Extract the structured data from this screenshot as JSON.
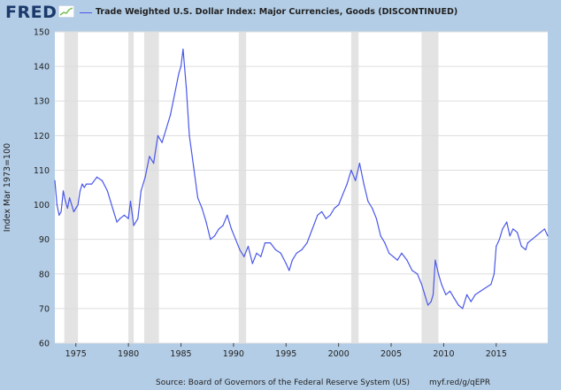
{
  "header": {
    "logo_text": "FRED",
    "logo_icon": "fred-sparkline-icon",
    "legend_label": "Trade Weighted U.S. Dollar Index: Major Currencies, Goods (DISCONTINUED)"
  },
  "footer": {
    "source": "Source: Board of Governors of the Federal Reserve System (US)",
    "url": "myf.red/g/qEPR"
  },
  "colors": {
    "page_background": "#b3cde6",
    "plot_background": "#ffffff",
    "line": "#4a58e8",
    "recession": "#e3e3e3",
    "grid": "#dddddd"
  },
  "chart_data": {
    "type": "line",
    "title": "",
    "xlabel": "",
    "ylabel": "Index Mar 1973=100",
    "xlim": [
      1973.0,
      2019.9
    ],
    "ylim": [
      60,
      150
    ],
    "yticks": [
      60,
      70,
      80,
      90,
      100,
      110,
      120,
      130,
      140,
      150
    ],
    "xticks": [
      1975,
      1980,
      1985,
      1990,
      1995,
      2000,
      2005,
      2010,
      2015
    ],
    "grid": "horizontal",
    "legend_position": "top",
    "recessions": [
      [
        1973.9,
        1975.2
      ],
      [
        1980.0,
        1980.5
      ],
      [
        1981.5,
        1982.9
      ],
      [
        1990.5,
        1991.2
      ],
      [
        2001.2,
        2001.9
      ],
      [
        2007.9,
        2009.5
      ]
    ],
    "series": [
      {
        "name": "Trade Weighted U.S. Dollar Index: Major Currencies, Goods (DISCONTINUED)",
        "x": [
          1973.0,
          1973.2,
          1973.4,
          1973.6,
          1973.8,
          1974.0,
          1974.2,
          1974.4,
          1974.6,
          1974.8,
          1975.0,
          1975.2,
          1975.4,
          1975.6,
          1975.8,
          1976.0,
          1976.5,
          1977.0,
          1977.5,
          1978.0,
          1978.3,
          1978.6,
          1978.9,
          1979.2,
          1979.6,
          1980.0,
          1980.2,
          1980.5,
          1980.9,
          1981.2,
          1981.6,
          1982.0,
          1982.4,
          1982.8,
          1983.2,
          1983.6,
          1984.0,
          1984.4,
          1984.8,
          1985.0,
          1985.2,
          1985.5,
          1985.8,
          1986.2,
          1986.6,
          1987.0,
          1987.4,
          1987.8,
          1988.2,
          1988.6,
          1989.0,
          1989.4,
          1989.8,
          1990.2,
          1990.6,
          1991.0,
          1991.4,
          1991.8,
          1992.2,
          1992.6,
          1993.0,
          1993.5,
          1994.0,
          1994.5,
          1995.0,
          1995.3,
          1995.6,
          1996.0,
          1996.5,
          1997.0,
          1997.5,
          1998.0,
          1998.4,
          1998.8,
          1999.2,
          1999.6,
          2000.0,
          2000.4,
          2000.8,
          2001.2,
          2001.6,
          2002.0,
          2002.4,
          2002.8,
          2003.2,
          2003.6,
          2004.0,
          2004.4,
          2004.8,
          2005.2,
          2005.6,
          2006.0,
          2006.5,
          2007.0,
          2007.5,
          2007.9,
          2008.2,
          2008.5,
          2008.8,
          2009.0,
          2009.2,
          2009.5,
          2009.8,
          2010.2,
          2010.6,
          2011.0,
          2011.4,
          2011.8,
          2012.2,
          2012.6,
          2013.0,
          2013.5,
          2014.0,
          2014.5,
          2014.8,
          2015.0,
          2015.3,
          2015.6,
          2016.0,
          2016.3,
          2016.6,
          2017.0,
          2017.4,
          2017.8,
          2018.0,
          2018.4,
          2018.8,
          2019.2,
          2019.6,
          2019.9
        ],
        "values": [
          107,
          100,
          97,
          98,
          104,
          101,
          99,
          102,
          100,
          98,
          99,
          100,
          104,
          106,
          105,
          106,
          106,
          108,
          107,
          104,
          101,
          98,
          95,
          96,
          97,
          96,
          101,
          94,
          96,
          104,
          108,
          114,
          112,
          120,
          118,
          122,
          126,
          132,
          138,
          140,
          145,
          134,
          120,
          111,
          102,
          99,
          95,
          90,
          91,
          93,
          94,
          97,
          93,
          90,
          87,
          85,
          88,
          83,
          86,
          85,
          89,
          89,
          87,
          86,
          83,
          81,
          84,
          86,
          87,
          89,
          93,
          97,
          98,
          96,
          97,
          99,
          100,
          103,
          106,
          110,
          107,
          112,
          106,
          101,
          99,
          96,
          91,
          89,
          86,
          85,
          84,
          86,
          84,
          81,
          80,
          77,
          74,
          71,
          72,
          74,
          84,
          80,
          77,
          74,
          75,
          73,
          71,
          70,
          74,
          72,
          74,
          75,
          76,
          77,
          80,
          88,
          90,
          93,
          95,
          91,
          93,
          92,
          88,
          87,
          89,
          90,
          91,
          92,
          93,
          91
        ]
      }
    ]
  }
}
